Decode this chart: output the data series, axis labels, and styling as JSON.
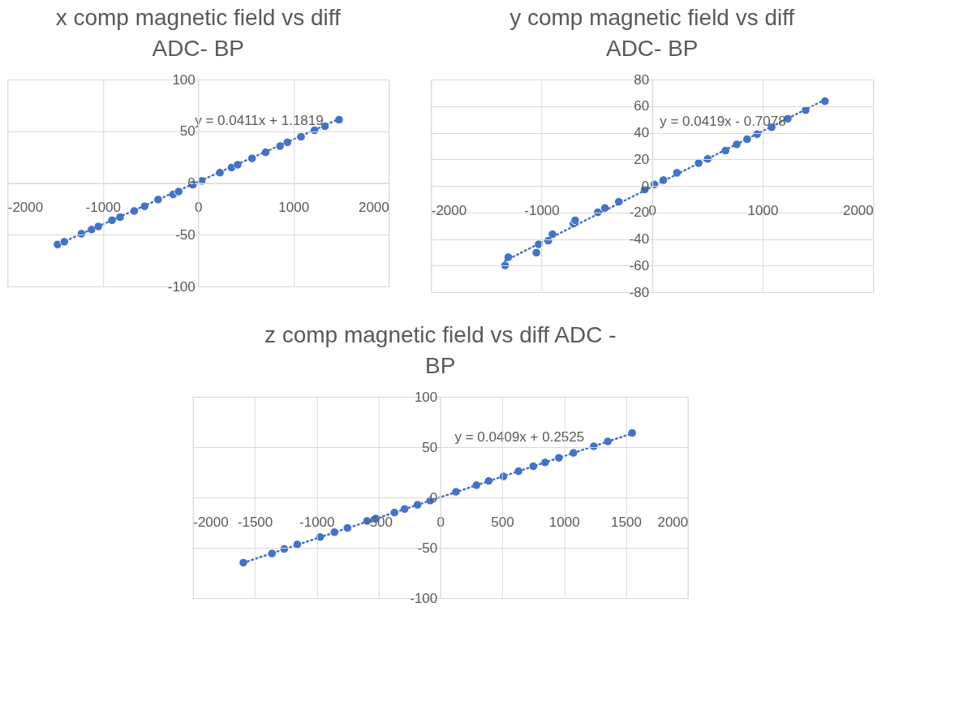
{
  "chart_data": [
    {
      "type": "scatter",
      "title": "x comp magnetic field vs diff ADC- BP",
      "xlim": [
        -2000,
        2000
      ],
      "xticks": [
        -2000,
        -1000,
        0,
        1000,
        2000
      ],
      "ylim": [
        -100,
        100
      ],
      "yticks": [
        -100,
        -50,
        0,
        50,
        100
      ],
      "grid": true,
      "marker": "circle",
      "series": [
        {
          "color": "#4472c4",
          "x": [
            -1475,
            -1404,
            -1224,
            -1118,
            -1047,
            -904,
            -819,
            -670,
            -562,
            -420,
            -262,
            -205,
            -54,
            37,
            228,
            351,
            414,
            565,
            708,
            859,
            936,
            1079,
            1221,
            1330,
            1478
          ],
          "values": [
            -59.4,
            -56.8,
            -49,
            -45,
            -42,
            -36,
            -33,
            -27,
            -22.5,
            -16,
            -11,
            -8.3,
            -1.6,
            2,
            10,
            15,
            17.6,
            23.8,
            29.7,
            35.7,
            39.3,
            44.7,
            50.9,
            54.8,
            61.2
          ]
        },
        {
          "type": "line",
          "line_style": "dotted",
          "marker": "none",
          "color": "#4472c4",
          "x": [
            -1475,
            1478
          ],
          "values": [
            -59.4,
            61.9
          ]
        }
      ],
      "annotations": [
        "y = 0.0411x + 1.1819"
      ]
    },
    {
      "type": "scatter",
      "title": "y comp magnetic field vs diff ADC- BP",
      "xlim": [
        -2000,
        2000
      ],
      "xticks": [
        -2000,
        -1000,
        0,
        1000,
        2000
      ],
      "ylim": [
        -80,
        80
      ],
      "yticks": [
        -80,
        -60,
        -40,
        -20,
        0,
        20,
        40,
        60,
        80
      ],
      "grid": true,
      "marker": "circle",
      "series": [
        {
          "color": "#4472c4",
          "x": [
            -1330,
            -1301,
            -1047,
            -1026,
            -939,
            -901,
            -711,
            -696,
            -491,
            -427,
            -301,
            -67,
            20,
            102,
            225,
            421,
            503,
            664,
            766,
            860,
            950,
            1082,
            1228,
            1389,
            1564
          ],
          "values": [
            -59.9,
            -53.7,
            -50.3,
            -44,
            -41.3,
            -36.4,
            -28.4,
            -25.9,
            -19.9,
            -16.7,
            -12,
            -2.8,
            1.1,
            4.3,
            9.8,
            17.1,
            20.3,
            26.5,
            31.2,
            35.1,
            38.9,
            44.1,
            50.5,
            56.9,
            63.7
          ]
        },
        {
          "type": "line",
          "line_style": "dotted",
          "marker": "none",
          "color": "#4472c4",
          "x": [
            -1330,
            1564
          ],
          "values": [
            -56.4,
            64.8
          ]
        }
      ],
      "annotations": [
        "y = 0.0419x - 0.7078"
      ]
    },
    {
      "type": "scatter",
      "title": "z comp magnetic field vs diff ADC - BP",
      "xlim": [
        -2000,
        2000
      ],
      "xticks": [
        -2000,
        -1500,
        -1000,
        -500,
        0,
        500,
        1000,
        1500,
        2000
      ],
      "ylim": [
        -100,
        100
      ],
      "yticks": [
        -100,
        -50,
        0,
        50,
        100
      ],
      "grid": true,
      "marker": "circle",
      "series": [
        {
          "color": "#4472c4",
          "x": [
            -1592,
            -1360,
            -1261,
            -1156,
            -972,
            -856,
            -751,
            -592,
            -521,
            -371,
            -289,
            -184,
            -82,
            127,
            292,
            391,
            510,
            632,
            751,
            847,
            958,
            1076,
            1241,
            1354,
            1550
          ],
          "values": [
            -64.8,
            -55.7,
            -51.2,
            -46.7,
            -39.4,
            -34.5,
            -30.3,
            -23.3,
            -20.9,
            -15,
            -11.5,
            -7.3,
            -3.1,
            5.6,
            12.2,
            16.4,
            20.9,
            26.1,
            31,
            34.8,
            39.4,
            44.3,
            50.9,
            55.7,
            64.1
          ]
        },
        {
          "type": "line",
          "line_style": "dotted",
          "marker": "none",
          "color": "#4472c4",
          "x": [
            -1592,
            1550
          ],
          "values": [
            -64.9,
            63.6
          ]
        }
      ],
      "annotations": [
        "y = 0.0409x + 0.2525"
      ]
    }
  ]
}
